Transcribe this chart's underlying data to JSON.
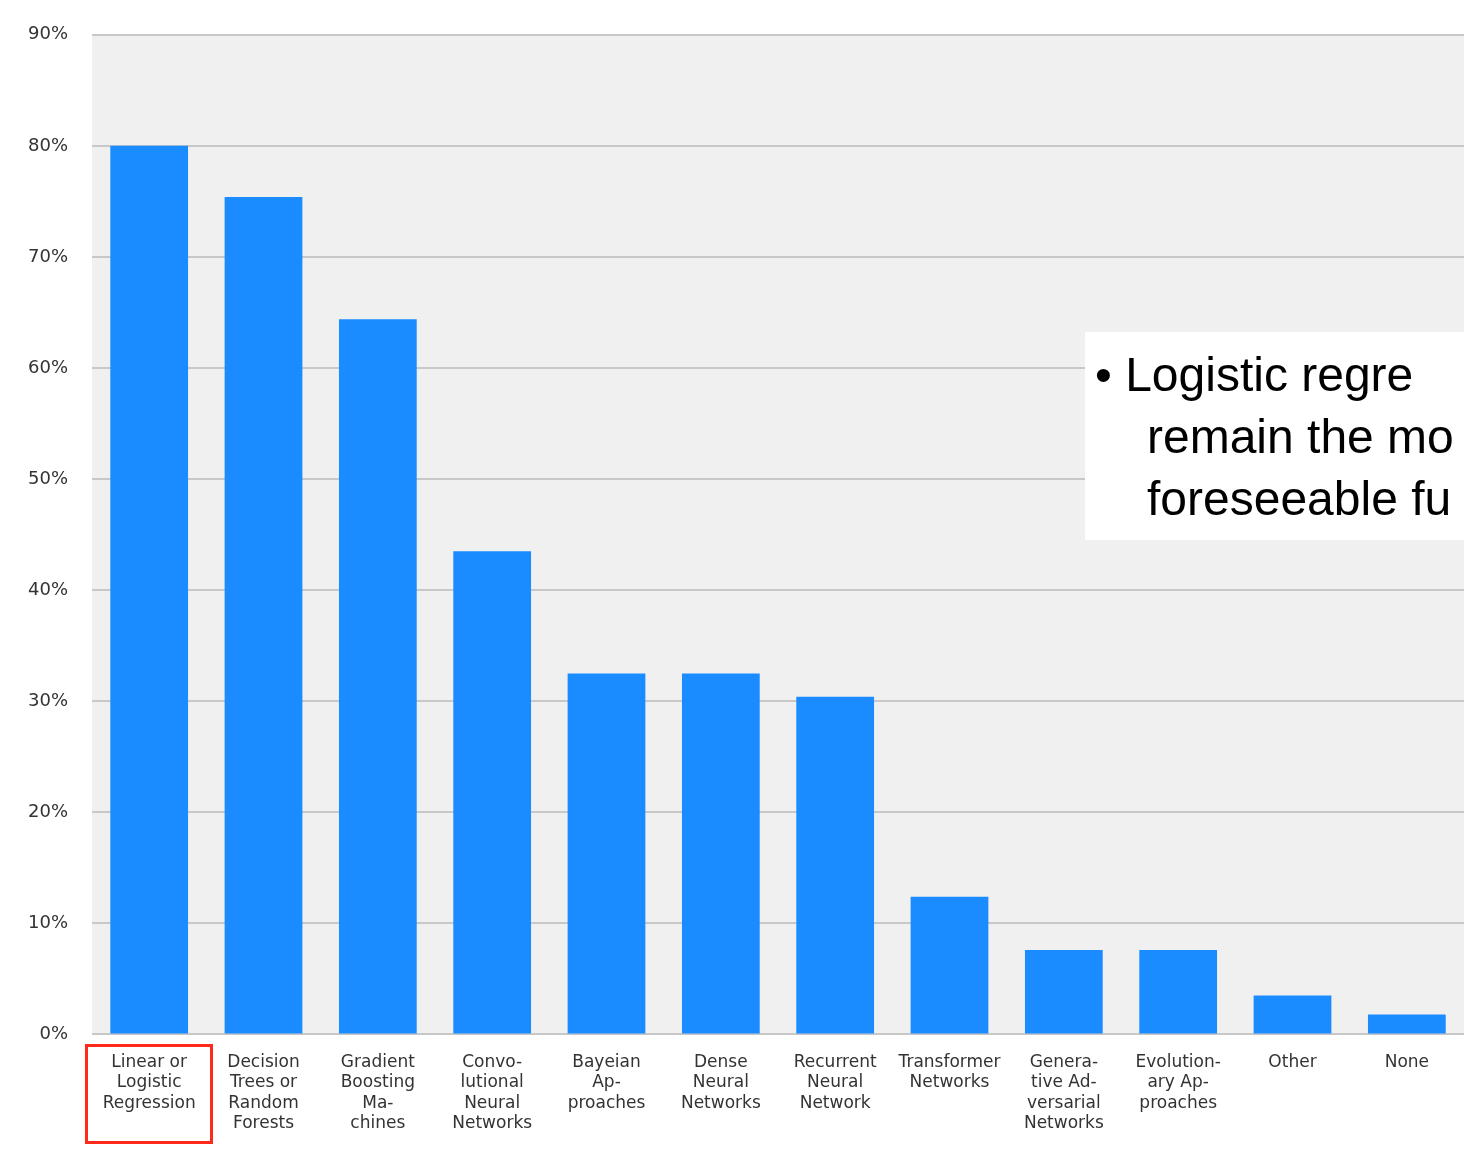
{
  "chart_data": {
    "type": "bar",
    "categories": [
      "Linear or\nLogistic\nRegression",
      "Decision\nTrees or\nRandom\nForests",
      "Gradient\nBoosting\nMa-\nchines",
      "Convo-\nlutional\nNeural\nNetworks",
      "Bayeian\nAp-\nproaches",
      "Dense\nNeural\nNetworks",
      "Recurrent\nNeural\nNetwork",
      "Transformer\nNetworks",
      "Genera-\ntive Ad-\nversarial\nNetworks",
      "Evolution-\nary Ap-\nproaches",
      "Other",
      "None"
    ],
    "values": [
      80,
      75.4,
      64.4,
      43.5,
      32.5,
      32.5,
      30.4,
      12.4,
      7.6,
      7.6,
      3.5,
      1.8
    ],
    "color": "#1a8cff",
    "ylim": [
      0,
      90
    ],
    "yticks": [
      {
        "value": 0,
        "label": "0%"
      },
      {
        "value": 10,
        "label": "10%"
      },
      {
        "value": 20,
        "label": "20%"
      },
      {
        "value": 30,
        "label": "30%"
      },
      {
        "value": 40,
        "label": "40%"
      },
      {
        "value": 50,
        "label": "50%"
      },
      {
        "value": 60,
        "label": "60%"
      },
      {
        "value": 70,
        "label": "70%"
      },
      {
        "value": 80,
        "label": "80%"
      },
      {
        "value": 90,
        "label": "90%"
      }
    ],
    "grid": "y",
    "legend": false,
    "annotations": [
      "• Logistic regre\nremain the mo\nforeseeable fu"
    ]
  }
}
